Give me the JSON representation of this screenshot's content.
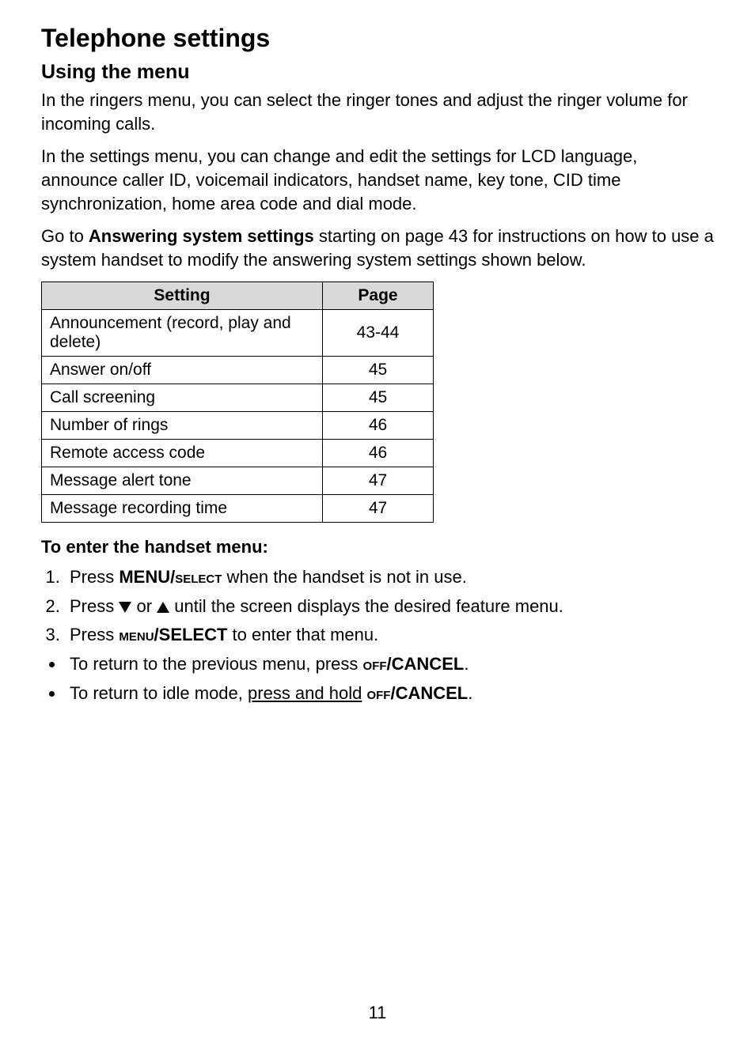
{
  "title": "Telephone settings",
  "subtitle": "Using the menu",
  "paragraphs": {
    "p1": "In the ringers menu, you can select the ringer tones and adjust the ringer volume for incoming calls.",
    "p2": "In the settings menu, you can change and edit the settings for LCD language, announce caller ID, voicemail indicators, handset name, key tone, CID time synchronization, home area code and dial mode.",
    "p3_prefix": "Go to ",
    "p3_bold": "Answering system settings",
    "p3_suffix": " starting on page 43 for instructions on how to use a system handset to modify the answering system settings shown below."
  },
  "table": {
    "columns": [
      "Setting",
      "Page"
    ],
    "column_widths": [
      "355px",
      "140px"
    ],
    "header_bg": "#d9d9d9",
    "border_color": "#000000",
    "rows": [
      [
        "Announcement (record, play and delete)",
        "43-44"
      ],
      [
        "Answer on/off",
        "45"
      ],
      [
        "Call screening",
        "45"
      ],
      [
        "Number of rings",
        "46"
      ],
      [
        "Remote access code",
        "46"
      ],
      [
        "Message alert tone",
        "47"
      ],
      [
        "Message recording time",
        "47"
      ]
    ]
  },
  "menu_heading": "To enter the handset menu:",
  "step1": {
    "prefix": "Press ",
    "bold_large": "MENU/",
    "bold_small": "select",
    "suffix": " when the handset is not in use."
  },
  "step2": {
    "prefix": "Press ",
    "middle": " or ",
    "suffix": " until the screen displays the desired feature menu."
  },
  "step3": {
    "prefix": "Press ",
    "bold_small": "menu",
    "bold_large": "/SELECT",
    "suffix": " to enter that menu."
  },
  "bullet1": {
    "prefix": "To return to the previous menu, press ",
    "bold_small": "off",
    "bold_large": "/CANCEL",
    "suffix": "."
  },
  "bullet2": {
    "prefix": "To return to idle mode, ",
    "underline": "press and hold",
    "space": " ",
    "bold_small": "off",
    "bold_large": "/CANCEL",
    "suffix": "."
  },
  "page_number": "11"
}
